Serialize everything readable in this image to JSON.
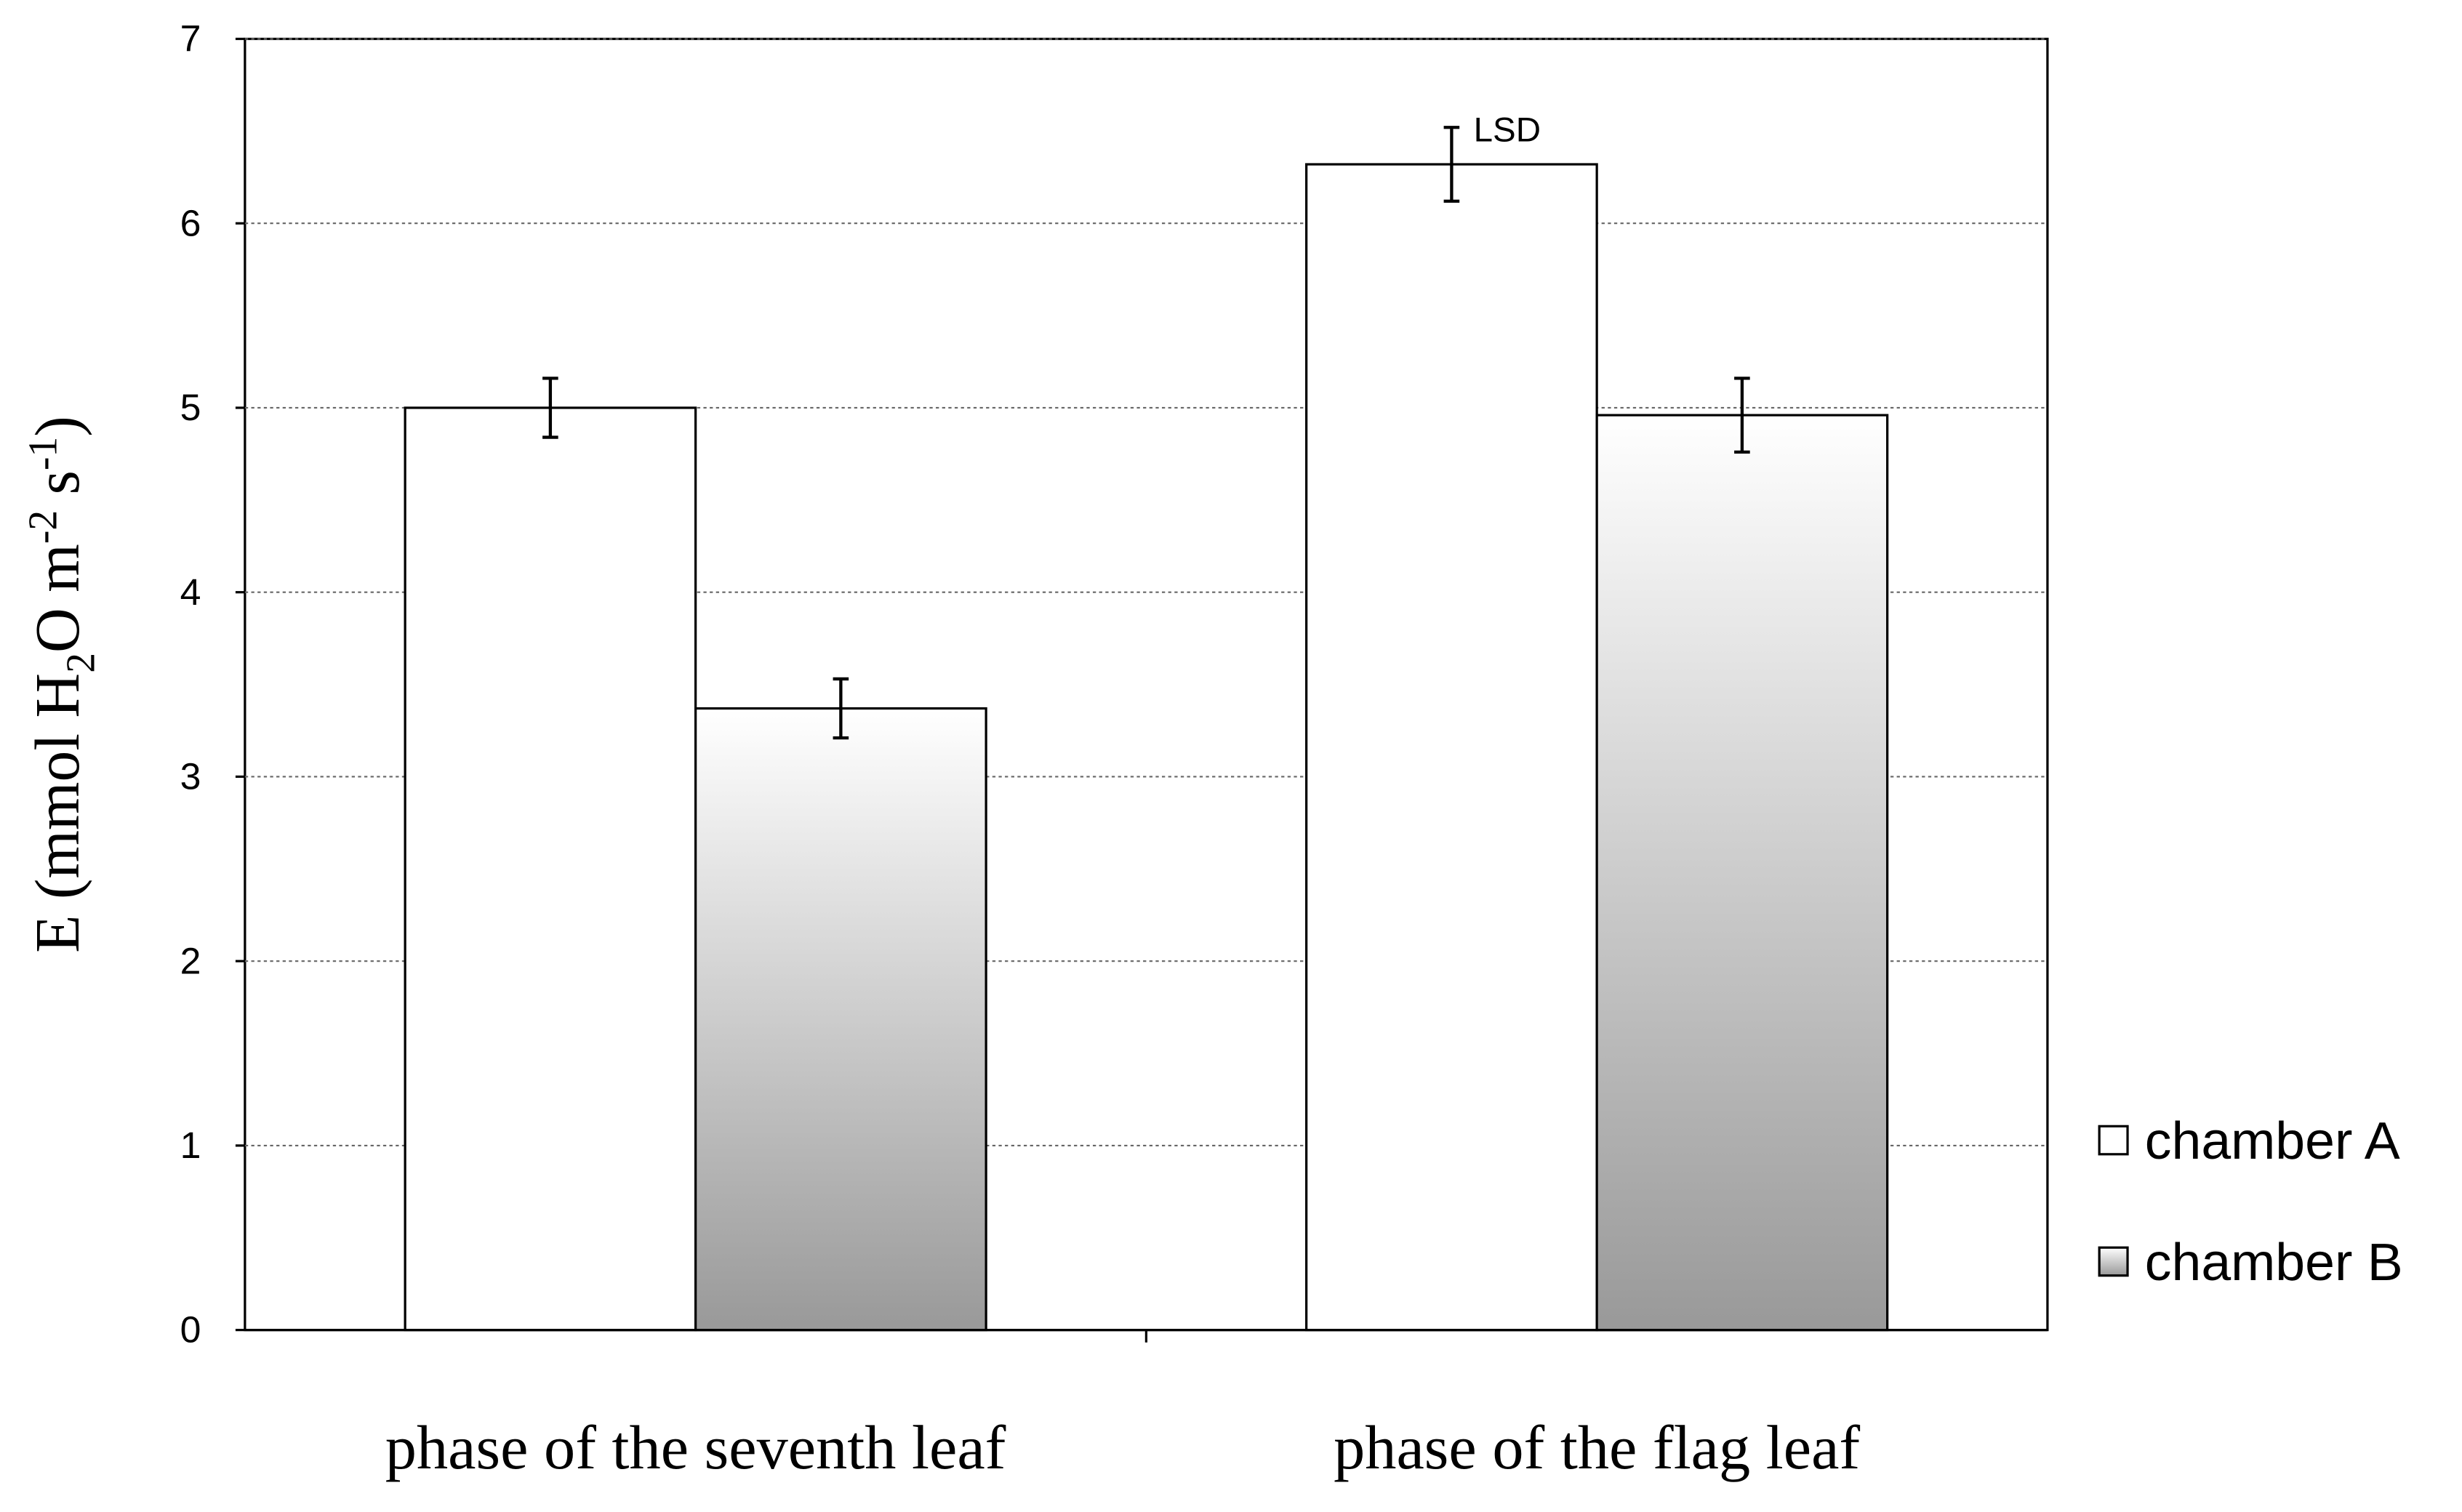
{
  "chart_data": {
    "type": "bar",
    "categories": [
      "phase of the seventh leaf",
      "phase of the flag leaf"
    ],
    "series": [
      {
        "name": "chamber A",
        "color": "#ffffff",
        "values": [
          5.0,
          6.32
        ],
        "errors": [
          0.16,
          0.2
        ]
      },
      {
        "name": "chamber B",
        "color": "#999999",
        "values": [
          3.37,
          4.96
        ],
        "errors": [
          0.16,
          0.2
        ]
      }
    ],
    "ylabel_parts": [
      "E (mmol H",
      "2",
      "O m",
      "-2",
      " s",
      "-1",
      ")"
    ],
    "ylim": [
      0,
      7
    ],
    "yticks": [
      0,
      1,
      2,
      3,
      4,
      5,
      6,
      7
    ],
    "grid": true,
    "annotation": "LSD",
    "legend": "right"
  }
}
